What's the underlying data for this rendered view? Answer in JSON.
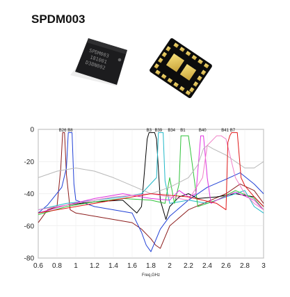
{
  "product": {
    "title": "SPDM003",
    "chip_marking": [
      "SPDM003",
      "181001",
      "D38N002"
    ]
  },
  "chart_data": {
    "type": "line",
    "xlabel": "Freq,GHz",
    "ylabel": "",
    "xlim": [
      0.6,
      3.0
    ],
    "ylim": [
      -80,
      0
    ],
    "xticks": [
      "0.6",
      "0.8",
      "1",
      "1.2",
      "1.4",
      "1.6",
      "1.8",
      "2",
      "2.2",
      "2.4",
      "2.6",
      "2.8",
      "3"
    ],
    "yticks": [
      "0",
      "-20",
      "-40",
      "-60",
      "-80"
    ],
    "band_labels": [
      {
        "label": "B26",
        "x": 0.86
      },
      {
        "label": "B8",
        "x": 0.94
      },
      {
        "label": "B3",
        "x": 1.78
      },
      {
        "label": "B39",
        "x": 1.88
      },
      {
        "label": "B34",
        "x": 2.02
      },
      {
        "label": "B1",
        "x": 2.14
      },
      {
        "label": "B40",
        "x": 2.35
      },
      {
        "label": "B41",
        "x": 2.59
      },
      {
        "label": "B7",
        "x": 2.67
      }
    ],
    "series": [
      {
        "color": "#8b1a1a",
        "x": [
          0.6,
          0.7,
          0.8,
          0.84,
          0.86,
          0.88,
          0.9,
          0.94,
          1.0,
          1.2,
          1.4,
          1.6,
          1.7,
          1.8,
          1.85,
          1.9,
          2.0,
          2.2,
          2.4,
          2.6,
          2.75,
          2.9,
          3.0
        ],
        "y": [
          -58,
          -50,
          -48,
          -24,
          -2,
          -2,
          -28,
          -50,
          -52,
          -54,
          -56,
          -58,
          -62,
          -68,
          -72,
          -74,
          -60,
          -50,
          -45,
          -40,
          -34,
          -38,
          -46
        ]
      },
      {
        "color": "#1f3fd6",
        "x": [
          0.6,
          0.7,
          0.85,
          0.9,
          0.92,
          0.94,
          0.96,
          0.98,
          1.0,
          1.2,
          1.4,
          1.6,
          1.7,
          1.75,
          1.8,
          1.9,
          2.0,
          2.2,
          2.4,
          2.6,
          2.75,
          2.9,
          3.0
        ],
        "y": [
          -52,
          -47,
          -36,
          -24,
          -2,
          -2,
          -2,
          -34,
          -44,
          -48,
          -50,
          -52,
          -64,
          -72,
          -76,
          -62,
          -54,
          -44,
          -36,
          -31,
          -27,
          -34,
          -40
        ]
      },
      {
        "color": "#000000",
        "x": [
          0.6,
          0.9,
          1.2,
          1.5,
          1.65,
          1.7,
          1.76,
          1.78,
          1.84,
          1.86,
          1.9,
          1.96,
          2.0,
          2.1,
          2.2,
          2.3,
          2.5,
          2.7,
          2.9,
          3.0
        ],
        "y": [
          -52,
          -47,
          -45,
          -44,
          -52,
          -48,
          -6,
          -2,
          -2,
          -6,
          -44,
          -56,
          -48,
          -42,
          -40,
          -43,
          -42,
          -40,
          -42,
          -48
        ]
      },
      {
        "color": "#20b8c8",
        "x": [
          0.6,
          0.9,
          1.2,
          1.5,
          1.7,
          1.86,
          1.88,
          1.93,
          1.95,
          2.0,
          2.2,
          2.4,
          2.6,
          2.8,
          2.9,
          3.0
        ],
        "y": [
          -50,
          -46,
          -44,
          -42,
          -40,
          -30,
          -2,
          -2,
          -32,
          -46,
          -44,
          -46,
          -42,
          -38,
          -48,
          -52
        ]
      },
      {
        "color": "#2fc23a",
        "x": [
          0.6,
          0.9,
          1.2,
          1.5,
          1.8,
          1.95,
          2.0,
          2.05,
          2.1,
          2.12,
          2.2,
          2.25,
          2.3,
          2.5,
          2.7,
          2.9,
          3.0
        ],
        "y": [
          -53,
          -48,
          -45,
          -43,
          -44,
          -46,
          -30,
          -46,
          -34,
          -4,
          -4,
          -26,
          -48,
          -44,
          -38,
          -43,
          -50
        ]
      },
      {
        "color": "#e030e0",
        "x": [
          0.6,
          0.9,
          1.2,
          1.5,
          1.8,
          2.0,
          2.1,
          2.2,
          2.28,
          2.33,
          2.36,
          2.4,
          2.44,
          2.5,
          2.7,
          2.9,
          3.0
        ],
        "y": [
          -52,
          -47,
          -43,
          -40,
          -43,
          -44,
          -38,
          -42,
          -40,
          -4,
          -4,
          -30,
          -46,
          -44,
          -39,
          -44,
          -50
        ]
      },
      {
        "color": "#b8b8b8",
        "x": [
          0.6,
          0.8,
          1.0,
          1.2,
          1.4,
          1.6,
          1.8,
          2.0,
          2.2,
          2.3,
          2.36,
          2.4,
          2.46,
          2.6,
          2.8,
          2.9,
          3.0
        ],
        "y": [
          -30,
          -26,
          -24,
          -26,
          -30,
          -35,
          -40,
          -36,
          -30,
          -22,
          -12,
          -10,
          -12,
          -16,
          -24,
          -24,
          -20
        ]
      },
      {
        "color": "#f080c8",
        "x": [
          0.6,
          1.0,
          1.4,
          1.8,
          2.0,
          2.2,
          2.35,
          2.4,
          2.5,
          2.55,
          2.6,
          2.7,
          2.8,
          2.9,
          3.0
        ],
        "y": [
          -50,
          -46,
          -42,
          -40,
          -42,
          -44,
          -30,
          -10,
          -4,
          -4,
          -6,
          -30,
          -40,
          -46,
          -50
        ]
      },
      {
        "color": "#e01818",
        "x": [
          0.6,
          1.0,
          1.4,
          1.8,
          2.2,
          2.5,
          2.6,
          2.62,
          2.64,
          2.66,
          2.72,
          2.76,
          2.8,
          2.9,
          3.0
        ],
        "y": [
          -52,
          -48,
          -44,
          -40,
          -42,
          -46,
          -50,
          -8,
          -4,
          -2,
          -2,
          -30,
          -35,
          -42,
          -48
        ]
      }
    ]
  }
}
